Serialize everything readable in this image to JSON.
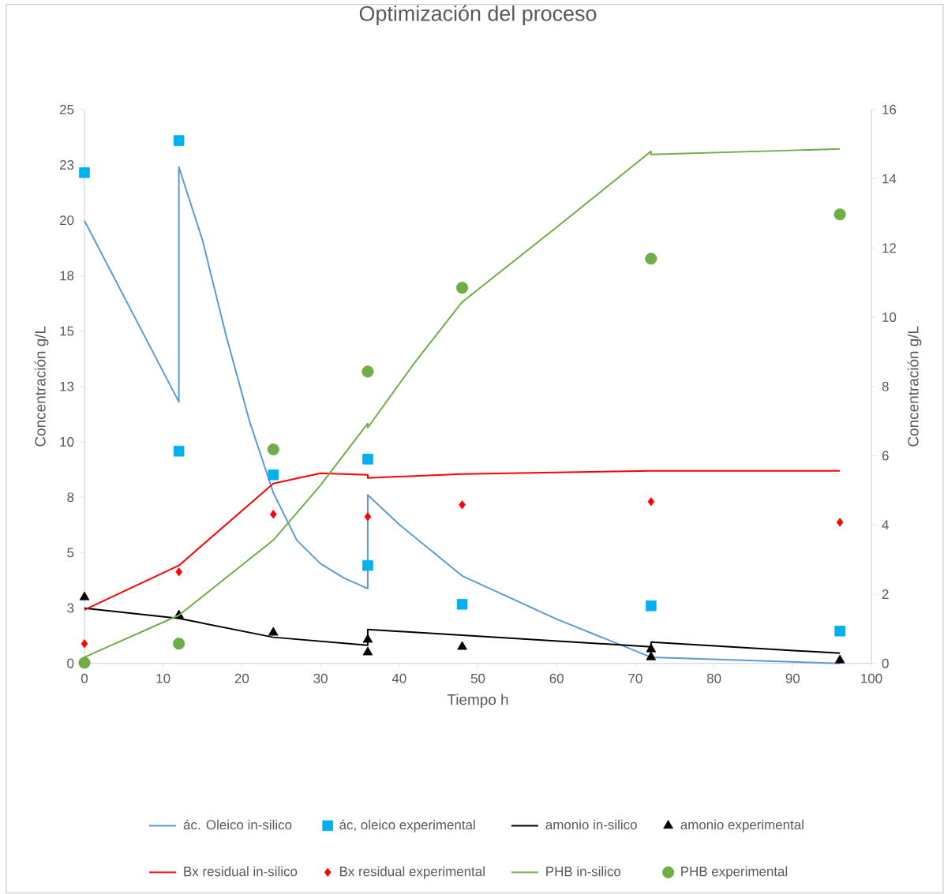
{
  "chart_data": {
    "type": "line",
    "title": "Optimización del proceso",
    "xlabel": "Tiempo h",
    "ylabel": "Concentración g/L",
    "y2label": "Concentración g/L",
    "xlim": [
      0,
      100
    ],
    "xticks": [
      0,
      10,
      20,
      30,
      40,
      50,
      60,
      70,
      80,
      90,
      100
    ],
    "ylim": [
      0,
      25
    ],
    "yticks": [
      0,
      {
        "value": 2.5,
        "label": "3"
      },
      5,
      {
        "value": 7.5,
        "label": "8"
      },
      10,
      {
        "value": 12.5,
        "label": "13"
      },
      15,
      {
        "value": 17.5,
        "label": "18"
      },
      20,
      {
        "value": 22.5,
        "label": "23"
      },
      25
    ],
    "y2lim": [
      0,
      16
    ],
    "y2ticks": [
      0,
      2,
      4,
      6,
      8,
      10,
      12,
      14,
      16
    ],
    "legend": "bottom",
    "series": [
      {
        "name": "ác. Oleico in-silico",
        "color": "#5b9bd5",
        "x": [
          0,
          12,
          12,
          15,
          18,
          21,
          24,
          27,
          30,
          33,
          36,
          36,
          40,
          48,
          60,
          72,
          96
        ],
        "values": [
          19.98,
          11.8,
          22.4,
          19.1,
          14.8,
          10.9,
          7.7,
          5.55,
          4.5,
          3.85,
          3.38,
          7.6,
          6.27,
          3.95,
          2.0,
          0.28,
          0
        ]
      },
      {
        "name": "ác, oleico experimental",
        "type": "scatter",
        "marker": "square",
        "color": "#00b0f0",
        "x": [
          0,
          12,
          12,
          24,
          36,
          36,
          48,
          72,
          96
        ],
        "values": [
          22.15,
          23.6,
          9.58,
          8.51,
          9.22,
          4.42,
          2.67,
          2.6,
          1.46
        ]
      },
      {
        "name": "amonio in-silico",
        "color": "#000000",
        "x": [
          0,
          12,
          24,
          36,
          36,
          72,
          72,
          96
        ],
        "values": [
          2.49,
          2.03,
          1.18,
          0.82,
          1.53,
          0.75,
          0.96,
          0.46
        ]
      },
      {
        "name": "amonio experimental",
        "type": "scatter",
        "marker": "triangle",
        "color": "#000000",
        "x": [
          0,
          12,
          24,
          36,
          36,
          48,
          72,
          72,
          96
        ],
        "values": [
          2.99,
          2.17,
          1.39,
          1.07,
          0.5,
          0.75,
          0.64,
          0.28,
          0.14
        ]
      },
      {
        "name": "Bx residual in-silico",
        "color": "#ff0000",
        "x": [
          0,
          12,
          18,
          24,
          30,
          36,
          36,
          48,
          72,
          96
        ],
        "values": [
          2.42,
          4.42,
          6.27,
          8.12,
          8.58,
          8.51,
          8.37,
          8.55,
          8.69,
          8.69
        ]
      },
      {
        "name": "Bx residual experimental",
        "type": "scatter",
        "marker": "diamond",
        "color": "#ff0000",
        "x": [
          0,
          12,
          24,
          36,
          48,
          72,
          96
        ],
        "values": [
          0.89,
          4.13,
          6.73,
          6.62,
          7.16,
          7.3,
          6.37
        ]
      },
      {
        "name": "PHB in-silico",
        "axis": "y2",
        "color": "#70ad47",
        "x": [
          0,
          12,
          24,
          30,
          36,
          36,
          42,
          48,
          60,
          72,
          72,
          96
        ],
        "values": [
          0.18,
          1.39,
          3.56,
          5.15,
          6.93,
          6.81,
          8.7,
          10.44,
          12.6,
          14.79,
          14.7,
          14.86
        ]
      },
      {
        "name": "PHB experimental",
        "type": "scatter",
        "marker": "circle",
        "axis": "y2",
        "color": "#70ad47",
        "x": [
          0,
          12,
          24,
          36,
          48,
          72,
          96
        ],
        "values": [
          0.02,
          0.57,
          6.18,
          8.43,
          10.85,
          11.69,
          12.97
        ]
      }
    ]
  }
}
